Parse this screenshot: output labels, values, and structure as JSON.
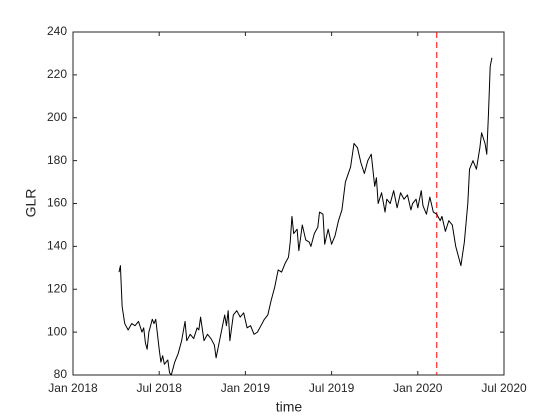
{
  "chart_data": {
    "type": "line",
    "xlabel": "time",
    "ylabel": "GLR",
    "xlim": [
      2018,
      2020.5
    ],
    "xticks": [
      {
        "value": 2018,
        "label": "Jan 2018"
      },
      {
        "value": 2018.5,
        "label": "Jul 2018"
      },
      {
        "value": 2019,
        "label": "Jan 2019"
      },
      {
        "value": 2019.5,
        "label": "Jul 2019"
      },
      {
        "value": 2020,
        "label": "Jan 2020"
      },
      {
        "value": 2020.5,
        "label": "Jul 2020"
      }
    ],
    "ylim": [
      80,
      240
    ],
    "yticks": [
      80,
      100,
      120,
      140,
      160,
      180,
      200,
      220,
      240
    ],
    "grid": false,
    "vline": {
      "x": 2020.11,
      "color": "#ff0000",
      "style": "dashed"
    },
    "series": [
      {
        "color": "#000000",
        "x": [
          2018.267,
          2018.275,
          2018.285,
          2018.3,
          2018.32,
          2018.34,
          2018.36,
          2018.38,
          2018.4,
          2018.41,
          2018.42,
          2018.43,
          2018.44,
          2018.46,
          2018.47,
          2018.48,
          2018.5,
          2018.51,
          2018.52,
          2018.53,
          2018.55,
          2018.56,
          2018.57,
          2018.59,
          2018.61,
          2018.63,
          2018.65,
          2018.66,
          2018.68,
          2018.7,
          2018.72,
          2018.73,
          2018.74,
          2018.76,
          2018.78,
          2018.8,
          2018.82,
          2018.83,
          2018.85,
          2018.87,
          2018.88,
          2018.89,
          2018.9,
          2018.91,
          2018.93,
          2018.95,
          2018.97,
          2018.99,
          2019.01,
          2019.03,
          2019.05,
          2019.07,
          2019.09,
          2019.11,
          2019.13,
          2019.15,
          2019.17,
          2019.19,
          2019.21,
          2019.23,
          2019.25,
          2019.26,
          2019.27,
          2019.28,
          2019.3,
          2019.31,
          2019.33,
          2019.35,
          2019.37,
          2019.38,
          2019.4,
          2019.42,
          2019.43,
          2019.45,
          2019.46,
          2019.48,
          2019.5,
          2019.52,
          2019.54,
          2019.56,
          2019.58,
          2019.61,
          2019.63,
          2019.65,
          2019.67,
          2019.69,
          2019.71,
          2019.73,
          2019.75,
          2019.76,
          2019.77,
          2019.79,
          2019.81,
          2019.82,
          2019.84,
          2019.86,
          2019.88,
          2019.9,
          2019.92,
          2019.94,
          2019.96,
          2019.97,
          2019.99,
          2020.0,
          2020.02,
          2020.03,
          2020.05,
          2020.07,
          2020.09,
          2020.11,
          2020.13,
          2020.14,
          2020.16,
          2020.18,
          2020.2,
          2020.22,
          2020.24,
          2020.25,
          2020.27,
          2020.29,
          2020.3,
          2020.32,
          2020.34,
          2020.36,
          2020.37,
          2020.39,
          2020.4,
          2020.41,
          2020.42,
          2020.43
        ],
        "values": [
          128,
          131,
          112,
          104,
          101,
          104,
          103,
          105,
          100,
          102,
          95,
          92,
          100,
          106,
          104,
          106,
          92,
          86,
          89,
          85,
          87,
          81,
          80,
          86,
          90,
          96,
          105,
          96,
          99,
          97,
          102,
          101,
          107,
          96,
          99,
          97,
          94,
          88,
          96,
          104,
          108,
          103,
          110,
          96,
          108,
          110,
          107,
          109,
          102,
          103,
          99,
          100,
          103,
          106,
          108,
          115,
          121,
          129,
          128,
          132,
          135,
          142,
          154,
          146,
          148,
          138,
          150,
          143,
          142,
          140,
          146,
          149,
          156,
          155,
          141,
          148,
          141,
          145,
          152,
          157,
          170,
          177,
          188,
          186,
          179,
          174,
          180,
          183,
          168,
          172,
          160,
          165,
          156,
          162,
          160,
          166,
          158,
          165,
          162,
          164,
          157,
          160,
          162,
          158,
          166,
          159,
          155,
          163,
          156,
          155,
          152,
          154,
          147,
          152,
          150,
          140,
          134,
          131,
          142,
          160,
          176,
          180,
          176,
          186,
          193,
          188,
          183,
          202,
          224,
          228
        ]
      }
    ]
  }
}
